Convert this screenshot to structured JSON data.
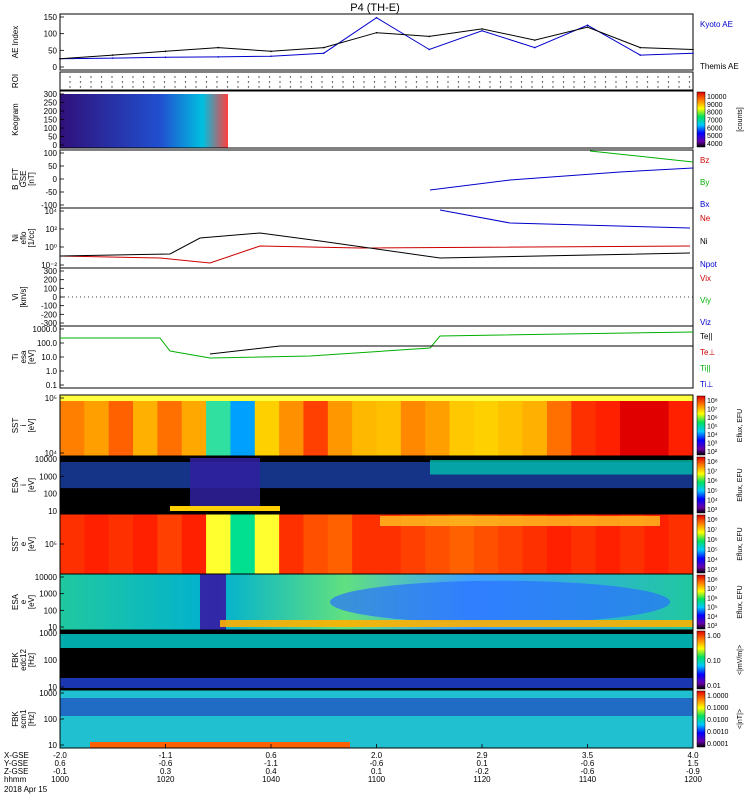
{
  "title": "P4 (TH-E)",
  "x_axis": {
    "rows": [
      {
        "label": "X-GSE",
        "values": [
          "-2.0",
          "-1.1",
          "0.6",
          "2.0",
          "2.9",
          "3.5",
          "4.0"
        ]
      },
      {
        "label": "Y-GSE",
        "values": [
          "0.6",
          "-0.6",
          "-1.1",
          "-0.6",
          "0.1",
          "-0.6",
          "1.5"
        ]
      },
      {
        "label": "Z-GSE",
        "values": [
          "-0.1",
          "0.3",
          "0.4",
          "0.1",
          "-0.2",
          "-0.6",
          "-0.9"
        ]
      },
      {
        "label": "hhmm",
        "values": [
          "1000",
          "1020",
          "1040",
          "1100",
          "1120",
          "1140",
          "1200"
        ]
      }
    ],
    "date": "2018 Apr 15"
  },
  "panels": [
    {
      "ylabel": "AE Index",
      "yticks": [
        "150",
        "100",
        "50",
        "0"
      ],
      "legend": [
        {
          "text": "Kyoto AE",
          "color": "#0000cc"
        },
        {
          "text": "Themis AE",
          "color": "#000000"
        }
      ]
    },
    {
      "ylabel": "ROI",
      "yticks": [],
      "legend": []
    },
    {
      "ylabel": "Keogram",
      "yticks": [
        "300",
        "250",
        "200",
        "150",
        "100",
        "50",
        "0"
      ],
      "legend": [],
      "colorbar": {
        "labels": [
          "10000",
          "9000",
          "8000",
          "7000",
          "6000",
          "5000",
          "4000"
        ],
        "unit": "[counts]"
      }
    },
    {
      "ylabel": "B_FIT\nGSE\n[nT]",
      "yticks": [
        "100",
        "50",
        "0",
        "-50",
        "-100"
      ],
      "legend": [
        {
          "text": "Bz",
          "color": "#cc0000"
        },
        {
          "text": "By",
          "color": "#00b000"
        },
        {
          "text": "Bx",
          "color": "#0000cc"
        }
      ]
    },
    {
      "ylabel": "Ni\neflo\n[1/cc]",
      "yticks": [
        "10⁴",
        "10²",
        "10⁰",
        "10⁻²"
      ],
      "legend": [
        {
          "text": "Ne",
          "color": "#cc0000"
        },
        {
          "text": "Ni",
          "color": "#000000"
        },
        {
          "text": "Npot",
          "color": "#0000cc"
        }
      ]
    },
    {
      "ylabel": "Vi\n[km/s]",
      "yticks": [
        "300",
        "200",
        "100",
        "0",
        "-100",
        "-200",
        "-300"
      ],
      "legend": [
        {
          "text": "Vix",
          "color": "#cc0000"
        },
        {
          "text": "Viy",
          "color": "#00b000"
        },
        {
          "text": "Viz",
          "color": "#0000cc"
        }
      ]
    },
    {
      "ylabel": "Ti\nesa\n[eV]",
      "yticks": [
        "1000.0",
        "100.0",
        "10.0",
        "1.0",
        "0.1"
      ],
      "legend": [
        {
          "text": "Te||",
          "color": "#000000"
        },
        {
          "text": "Te⊥",
          "color": "#cc0000"
        },
        {
          "text": "Ti||",
          "color": "#00b000"
        },
        {
          "text": "Ti⊥",
          "color": "#0000cc"
        }
      ]
    },
    {
      "ylabel": "SST\ni\n[eV]",
      "yticks": [
        "10⁵",
        "10⁴"
      ],
      "legend": [],
      "colorbar": {
        "labels": [
          "10⁸",
          "10⁷",
          "10⁶",
          "10⁵",
          "10⁴",
          "10³",
          "10²"
        ],
        "unit": "Eflux, EFU"
      }
    },
    {
      "ylabel": "ESA\ni\n[eV]",
      "yticks": [
        "10000",
        "1000",
        "100",
        "10"
      ],
      "legend": [],
      "colorbar": {
        "labels": [
          "10⁸",
          "10⁷",
          "10⁶",
          "10⁵",
          "10⁴",
          "10³"
        ],
        "unit": "Eflux, EFU"
      }
    },
    {
      "ylabel": "SST\ne\n[eV]",
      "yticks": [
        "10⁵"
      ],
      "legend": [],
      "colorbar": {
        "labels": [
          "10⁸",
          "10⁷",
          "10⁶",
          "10⁵",
          "10⁴",
          "10³"
        ],
        "unit": "Eflux, EFU"
      }
    },
    {
      "ylabel": "ESA\ne\n[eV]",
      "yticks": [
        "10000",
        "1000",
        "100",
        "10"
      ],
      "legend": [],
      "colorbar": {
        "labels": [
          "10⁸",
          "10⁷",
          "10⁶",
          "10⁵",
          "10⁴",
          "10³"
        ],
        "unit": "Eflux, EFU"
      }
    },
    {
      "ylabel": "FBK\nedc12\n[Hz]",
      "yticks": [
        "1000",
        "100",
        "10"
      ],
      "legend": [],
      "colorbar": {
        "labels": [
          "1.00",
          "0.10",
          "0.01"
        ],
        "unit": "<|mV/m|>"
      }
    },
    {
      "ylabel": "FBK\nscm1\n[Hz]",
      "yticks": [
        "1000",
        "100",
        "10"
      ],
      "legend": [],
      "colorbar": {
        "labels": [
          "1.0000",
          "0.1000",
          "0.0100",
          "0.0010",
          "0.0001"
        ],
        "unit": "<|nT|>"
      }
    }
  ],
  "chart_data": {
    "type": "line",
    "title": "P4 (TH-E)",
    "x": [
      "1000",
      "1010",
      "1020",
      "1030",
      "1040",
      "1050",
      "1100",
      "1110",
      "1120",
      "1130",
      "1140",
      "1150",
      "1200"
    ],
    "series": [
      {
        "name": "Kyoto AE",
        "values": [
          30,
          32,
          34,
          35,
          37,
          45,
          140,
          55,
          105,
          60,
          120,
          40,
          45
        ]
      },
      {
        "name": "Themis AE",
        "values": [
          30,
          40,
          50,
          60,
          50,
          60,
          100,
          90,
          110,
          80,
          115,
          60,
          55
        ]
      }
    ],
    "xlabel": "hhmm",
    "ylabel": "AE Index",
    "ylim": [
      0,
      150
    ]
  }
}
